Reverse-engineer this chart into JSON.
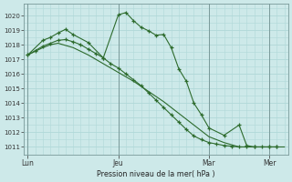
{
  "background_color": "#cde9e9",
  "grid_color": "#b0d8d8",
  "line_color": "#2d6b2d",
  "ylabel_text": "Pression niveau de la mer( hPa )",
  "ylim": [
    1010.5,
    1020.8
  ],
  "yticks": [
    1011,
    1012,
    1013,
    1014,
    1015,
    1016,
    1017,
    1018,
    1019,
    1020
  ],
  "xtick_labels": [
    "Lun",
    "Jeu",
    "Mar",
    "Mer"
  ],
  "xtick_positions": [
    0,
    12,
    24,
    32
  ],
  "xlim": [
    -0.5,
    34.5
  ],
  "series1_x": [
    0,
    1,
    2,
    3,
    4,
    5,
    6,
    7,
    8,
    9,
    10,
    11,
    12,
    13,
    14,
    15,
    16,
    17,
    18,
    19,
    20,
    21,
    22,
    23,
    24,
    25,
    26,
    27,
    28,
    29,
    30,
    31,
    32,
    33,
    34
  ],
  "series1_y": [
    1017.3,
    1017.55,
    1017.8,
    1018.0,
    1018.1,
    1017.95,
    1017.8,
    1017.55,
    1017.3,
    1017.0,
    1016.7,
    1016.4,
    1016.1,
    1015.8,
    1015.5,
    1015.15,
    1014.8,
    1014.45,
    1014.1,
    1013.7,
    1013.3,
    1012.9,
    1012.5,
    1012.1,
    1011.7,
    1011.5,
    1011.3,
    1011.15,
    1011.0,
    1011.0,
    1011.0,
    1011.0,
    1011.0,
    1011.0,
    1011.0
  ],
  "series2_x": [
    0,
    2,
    3,
    4,
    5,
    6,
    8,
    10,
    12,
    13,
    14,
    15,
    16,
    17,
    18,
    19,
    20,
    21,
    22,
    23,
    24,
    26,
    28,
    29,
    30,
    32,
    33
  ],
  "series2_y": [
    1017.3,
    1018.3,
    1018.5,
    1018.8,
    1019.05,
    1018.7,
    1018.15,
    1017.1,
    1020.05,
    1020.2,
    1019.65,
    1019.2,
    1018.95,
    1018.65,
    1018.7,
    1017.8,
    1016.35,
    1015.5,
    1014.0,
    1013.2,
    1012.3,
    1011.8,
    1012.5,
    1011.1,
    1011.0,
    1011.0,
    1011.0
  ],
  "series3_x": [
    0,
    1,
    2,
    3,
    4,
    5,
    6,
    7,
    8,
    9,
    10,
    11,
    12,
    13,
    14,
    15,
    16,
    17,
    18,
    19,
    20,
    21,
    22,
    23,
    24,
    25,
    26,
    27,
    28,
    29,
    30,
    31,
    32,
    33
  ],
  "series3_y": [
    1017.3,
    1017.6,
    1017.9,
    1018.1,
    1018.3,
    1018.35,
    1018.2,
    1018.0,
    1017.7,
    1017.4,
    1017.1,
    1016.7,
    1016.4,
    1016.0,
    1015.6,
    1015.2,
    1014.7,
    1014.2,
    1013.7,
    1013.2,
    1012.7,
    1012.2,
    1011.75,
    1011.5,
    1011.3,
    1011.2,
    1011.1,
    1011.05,
    1011.0,
    1011.0,
    1011.0,
    1011.0,
    1011.0,
    1011.0
  ]
}
